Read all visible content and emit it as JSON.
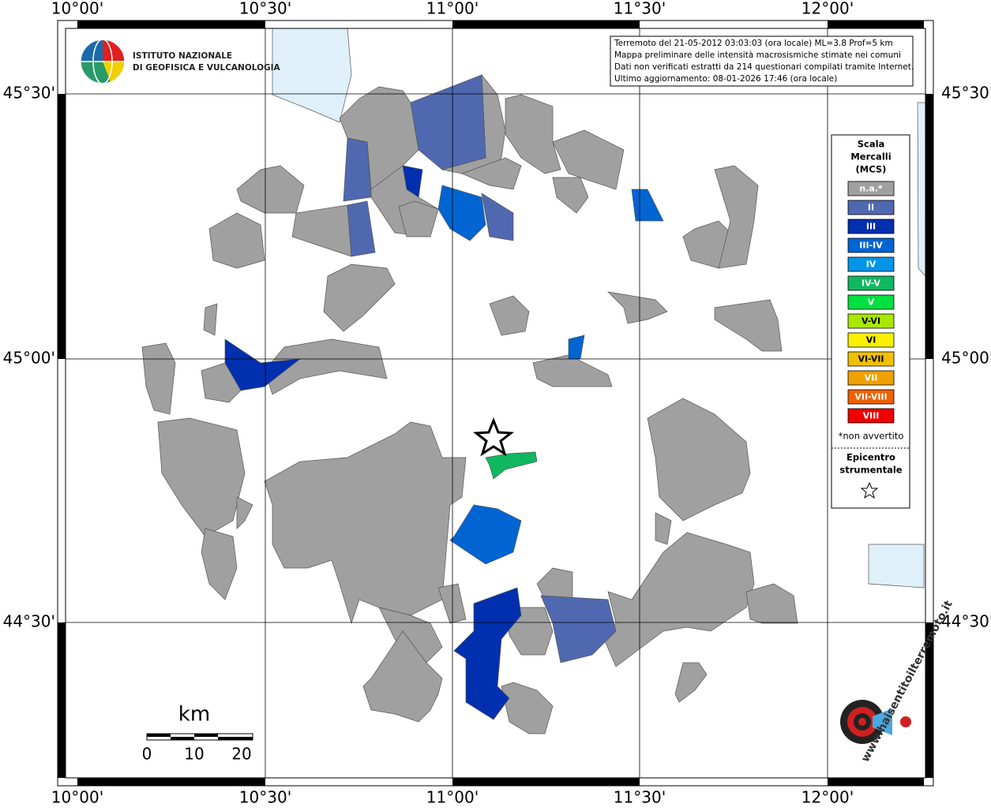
{
  "header": {
    "institute": [
      "ISTITUTO NAZIONALE",
      "DI GEOFISICA E VULCANOLOGIA"
    ]
  },
  "info": [
    "Terremoto del 21-05-2012 03:03:03 (ora locale) ML=3.8 Prof=5 km",
    "Mappa preliminare delle intensità macrosismiche stimate nei comuni",
    "Dati non verificati estratti da 214 questionari compilati tramite Internet.",
    "Ultimo aggiornamento: 08-01-2026 17:46 (ora locale)"
  ],
  "grid": {
    "lon": [
      "10°00'",
      "10°30'",
      "11°00'",
      "11°30'",
      "12°00'"
    ],
    "lat": [
      "45°30'",
      "45°00'",
      "44°30'"
    ]
  },
  "legend": {
    "title": [
      "Scala",
      "Mercalli",
      "(MCS)"
    ],
    "items": [
      {
        "name": "n.a.*",
        "color": "#a0a0a0"
      },
      {
        "name": "II",
        "color": "#5068b0"
      },
      {
        "name": "III",
        "color": "#0030b0"
      },
      {
        "name": "III-IV",
        "color": "#0064d2"
      },
      {
        "name": "IV",
        "color": "#0096e6"
      },
      {
        "name": "IV-V",
        "color": "#10b860"
      },
      {
        "name": "V",
        "color": "#00e040"
      },
      {
        "name": "V-VI",
        "color": "#a8e800"
      },
      {
        "name": "VI",
        "color": "#f8f000"
      },
      {
        "name": "VI-VII",
        "color": "#f0c000"
      },
      {
        "name": "VII",
        "color": "#f0a000"
      },
      {
        "name": "VII-VIII",
        "color": "#f06000"
      },
      {
        "name": "VIII",
        "color": "#f00000"
      }
    ],
    "note": "*non avvertito",
    "epicenter": [
      "Epicentro",
      "strumentale"
    ]
  },
  "scale": {
    "unit": "km",
    "labels": [
      0,
      10,
      20
    ]
  },
  "logo": "www.haisentitoilterremoto.it"
}
